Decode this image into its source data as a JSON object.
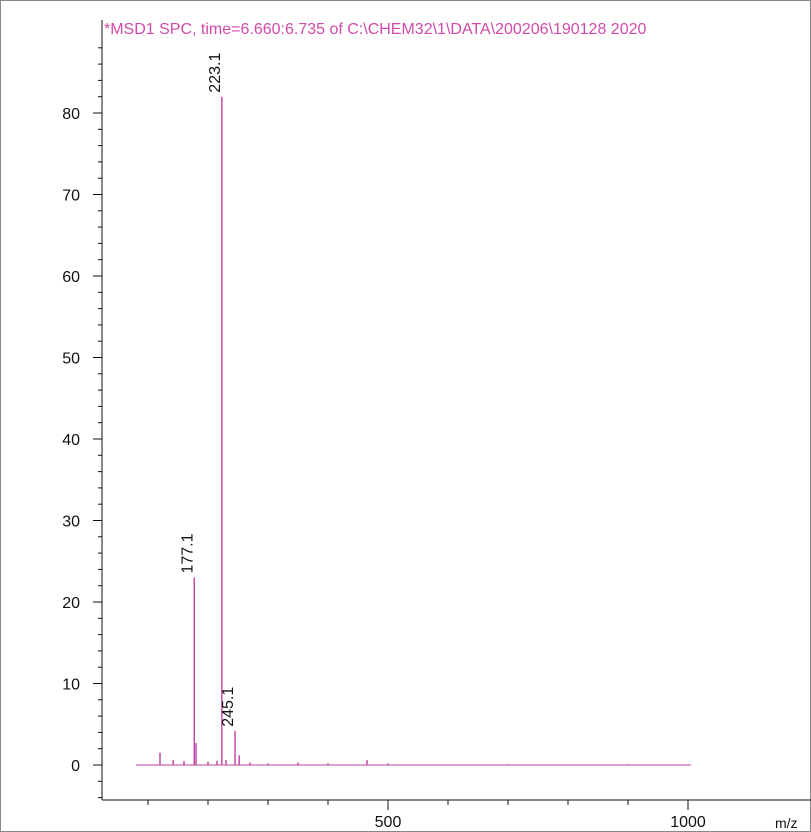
{
  "chart_data": {
    "type": "bar",
    "title": "*MSD1 SPC, time=6.660:6.735 of C:\\CHEM32\\1\\DATA\\200206\\190128 2020",
    "xlabel": "",
    "x_unit_label": "m/z",
    "ylabel": "",
    "xlim": [
      0,
      1070
    ],
    "ylim": [
      -4,
      90
    ],
    "x_ticks": [
      500,
      1000
    ],
    "y_ticks": [
      0,
      10,
      20,
      30,
      40,
      50,
      60,
      70,
      80
    ],
    "grid": false,
    "peak_labels": [
      {
        "x": 177.1,
        "text": "177.1"
      },
      {
        "x": 223.1,
        "text": "223.1"
      },
      {
        "x": 245.1,
        "text": "245.1"
      }
    ],
    "series": [
      {
        "x": [
          120,
          142,
          160,
          177.1,
          180,
          200,
          215,
          223.1,
          230,
          245.1,
          252,
          270,
          300,
          350,
          400,
          465,
          500,
          600,
          700,
          800,
          900,
          1000
        ],
        "values": [
          1.5,
          0.6,
          0.5,
          23,
          2.7,
          0.4,
          0.5,
          82,
          0.6,
          4.2,
          1.2,
          0.3,
          0.2,
          0.3,
          0.2,
          0.6,
          0.2,
          0.1,
          0.1,
          0.1,
          0.1,
          0.1
        ]
      }
    ]
  },
  "colors": {
    "spectrum": "#c040a0",
    "title": "#d24aa8",
    "axis": "#111111",
    "frame": "#888888"
  }
}
